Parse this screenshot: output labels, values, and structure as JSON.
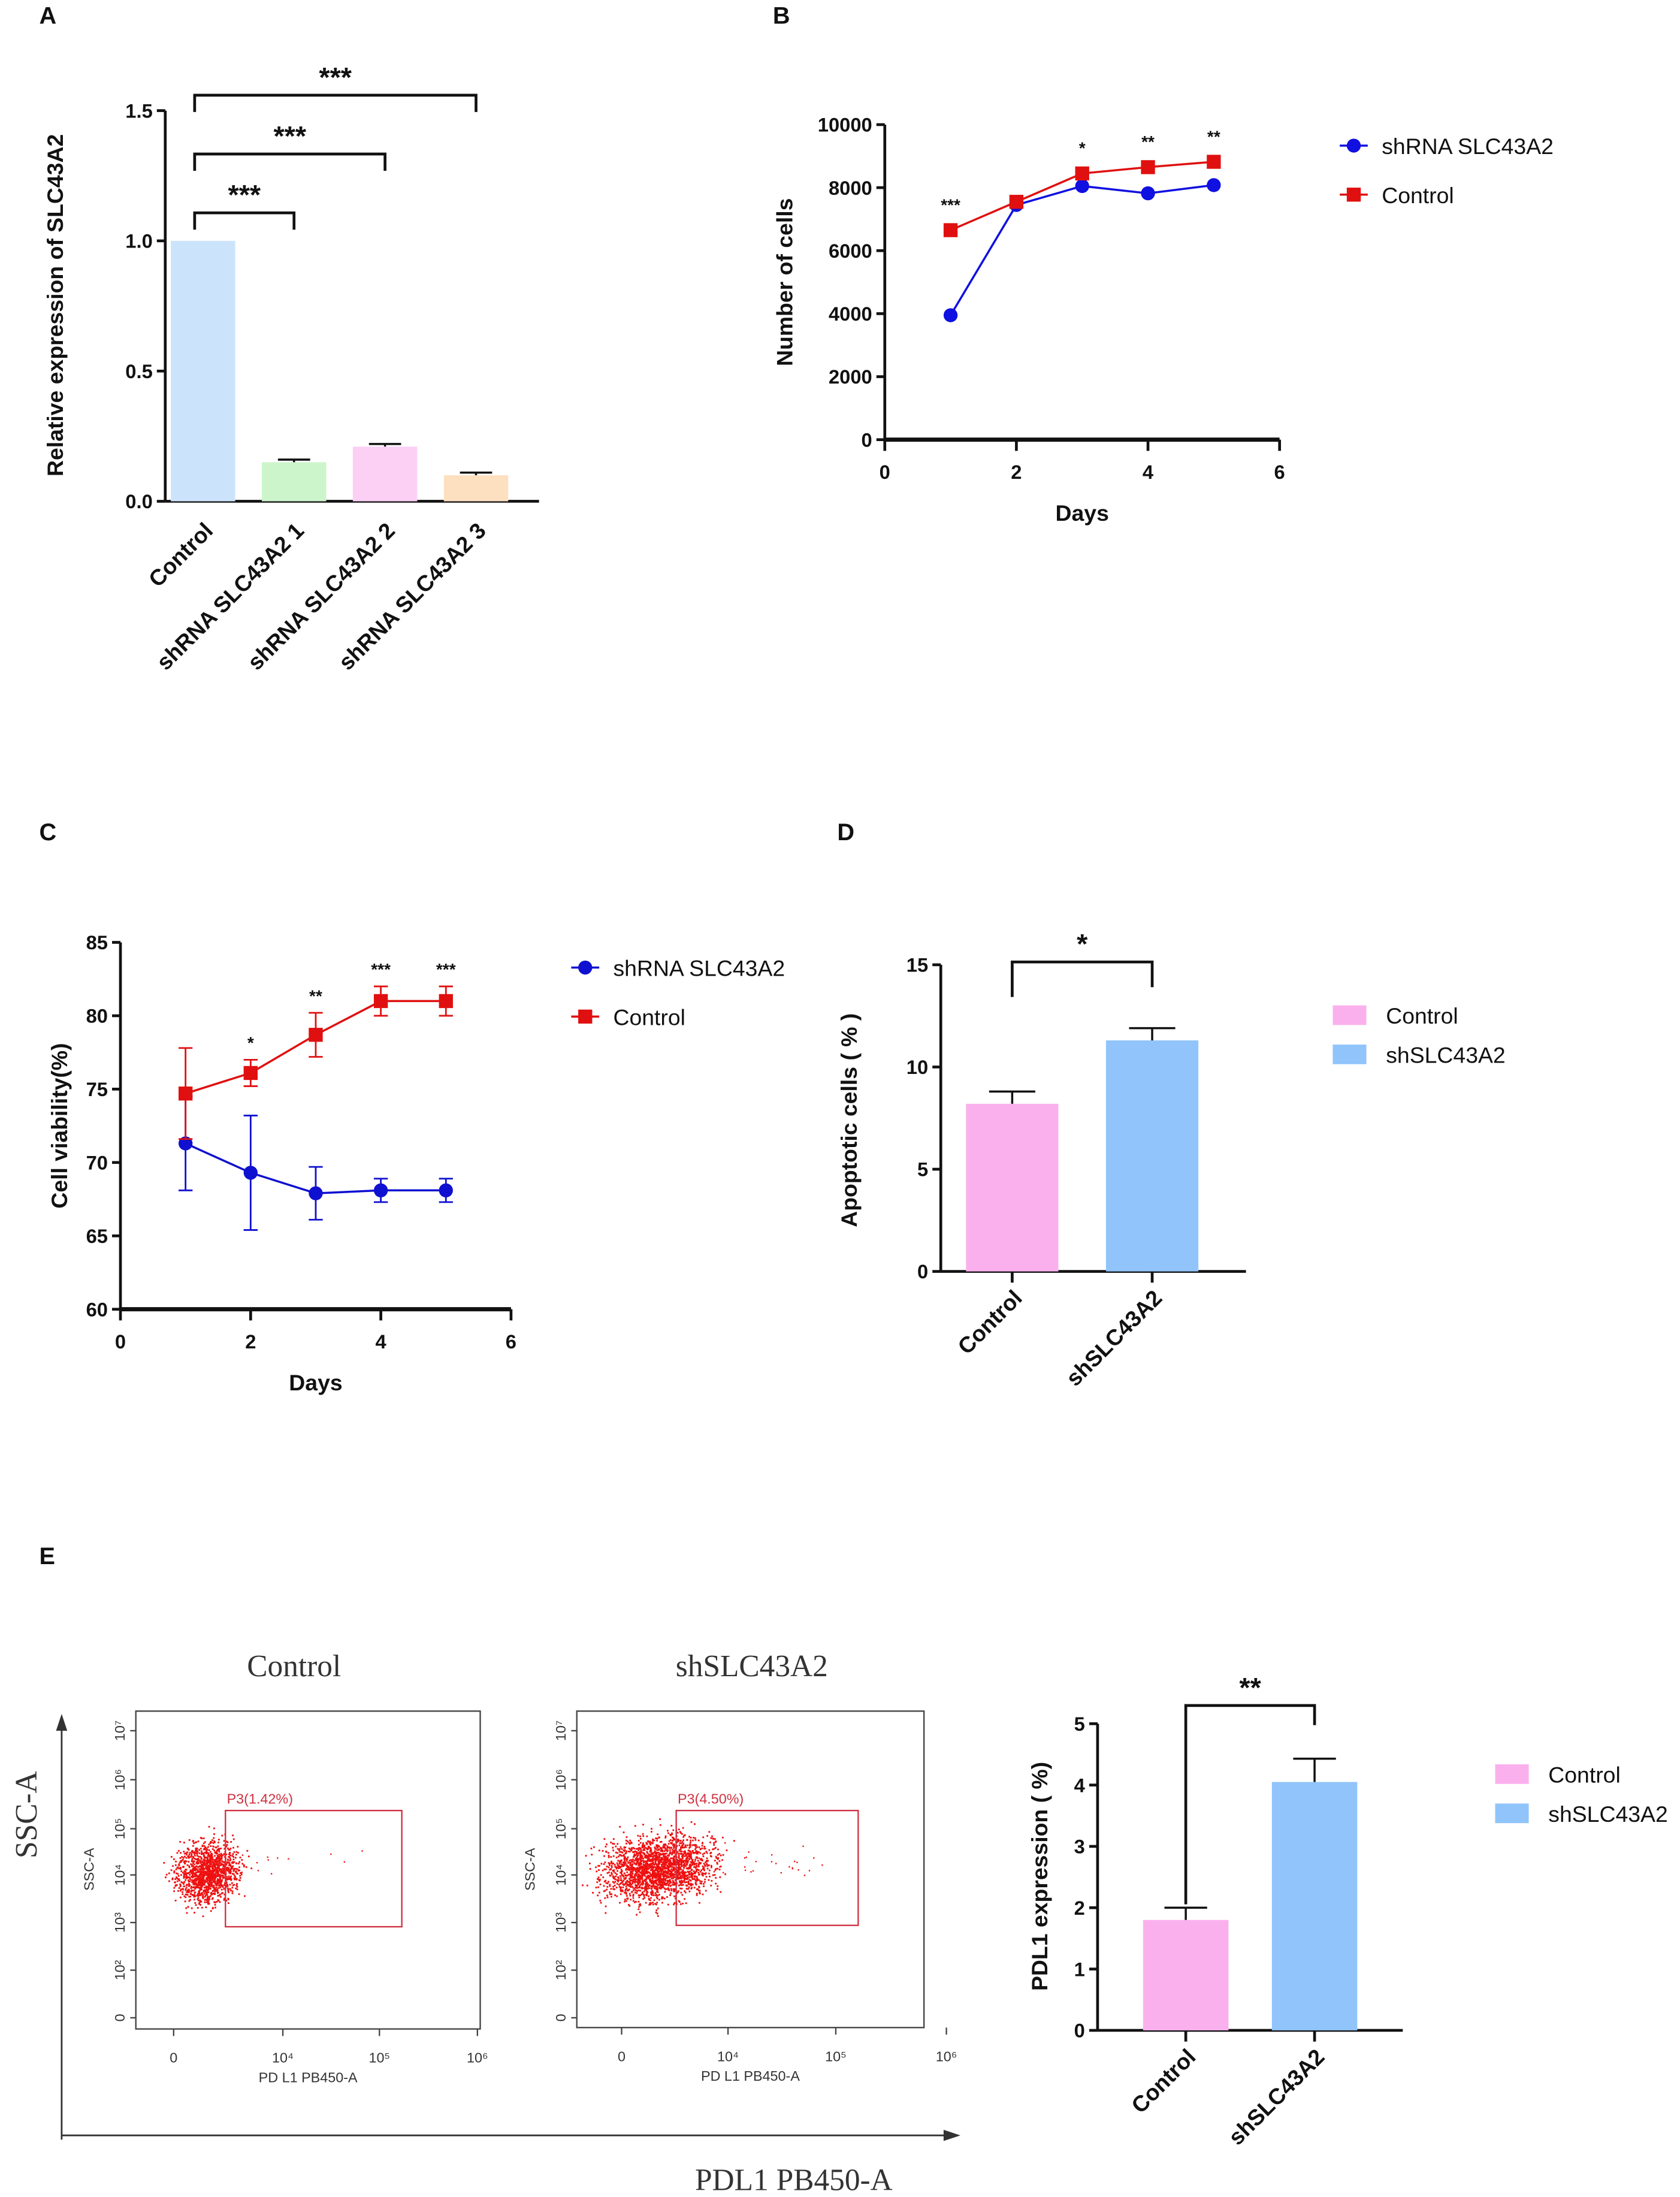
{
  "panels": {
    "a": "A",
    "b": "B",
    "c": "C",
    "d": "D",
    "e": "E"
  },
  "chart_data": [
    {
      "id": "A",
      "type": "bar",
      "title": "",
      "ylabel": "Relative expression of SLC43A2",
      "xlabel": "",
      "ylim": [
        0,
        1.5
      ],
      "yticks": [
        "0.0",
        "0.5",
        "1.0",
        "1.5"
      ],
      "ytick_values": [
        0,
        0.5,
        1.0,
        1.5
      ],
      "categories": [
        "Control",
        "shRNA SLC43A2  1",
        "shRNA SLC43A2 2",
        "shRNA SLC43A2 3"
      ],
      "values": [
        1.0,
        0.15,
        0.21,
        0.1
      ],
      "errors": [
        0,
        0.01,
        0.01,
        0.01
      ],
      "colors": [
        "#cce4fb",
        "#ccf5cc",
        "#fcd0f5",
        "#fde0c0"
      ],
      "significance": [
        {
          "from": "Control",
          "to": "shRNA SLC43A2  1",
          "label": "***"
        },
        {
          "from": "Control",
          "to": "shRNA SLC43A2 2",
          "label": "***"
        },
        {
          "from": "Control",
          "to": "shRNA SLC43A2 3",
          "label": "***"
        }
      ]
    },
    {
      "id": "B",
      "type": "line",
      "xlabel": "Days",
      "ylabel": "Number of cells",
      "xlim": [
        0,
        6
      ],
      "ylim": [
        0,
        10000
      ],
      "xticks": [
        "0",
        "2",
        "4",
        "6"
      ],
      "xtick_values": [
        0,
        2,
        4,
        6
      ],
      "yticks": [
        "0",
        "2000",
        "4000",
        "6000",
        "8000",
        "10000"
      ],
      "ytick_values": [
        0,
        2000,
        4000,
        6000,
        8000,
        10000
      ],
      "x": [
        1,
        2,
        3,
        4,
        5
      ],
      "series": [
        {
          "name": "shRNA SLC43A2",
          "color": "#1010e0",
          "marker": "circle",
          "values": [
            3950,
            7450,
            8050,
            7820,
            8080
          ]
        },
        {
          "name": "Control",
          "color": "#e01010",
          "marker": "square",
          "values": [
            6650,
            7550,
            8450,
            8650,
            8820
          ]
        }
      ],
      "annotations": [
        "***",
        "",
        "*",
        "**",
        "**"
      ],
      "legend": "right"
    },
    {
      "id": "C",
      "type": "line",
      "xlabel": "Days",
      "ylabel": "Cell viability(%)",
      "xlim": [
        0,
        6
      ],
      "ylim": [
        60,
        85
      ],
      "xticks": [
        "0",
        "2",
        "4",
        "6"
      ],
      "xtick_values": [
        0,
        2,
        4,
        6
      ],
      "yticks": [
        "60",
        "65",
        "70",
        "75",
        "80",
        "85"
      ],
      "ytick_values": [
        60,
        65,
        70,
        75,
        80,
        85
      ],
      "x": [
        1,
        2,
        3,
        4,
        5
      ],
      "series": [
        {
          "name": "shRNA SLC43A2",
          "color": "#1010d0",
          "marker": "circle",
          "values": [
            71.3,
            69.3,
            67.9,
            68.1,
            68.1
          ],
          "errors": [
            3.2,
            3.9,
            1.8,
            0.8,
            0.8
          ]
        },
        {
          "name": "Control",
          "color": "#e01010",
          "marker": "square",
          "values": [
            74.7,
            76.1,
            78.7,
            81.0,
            81.0
          ],
          "errors": [
            3.1,
            0.9,
            1.5,
            1.0,
            1.0
          ]
        }
      ],
      "annotations": [
        "",
        "*",
        "**",
        "***",
        "***"
      ],
      "legend": "right"
    },
    {
      "id": "D",
      "type": "bar",
      "ylabel": "Apoptotic cells ( % )",
      "xlabel": "",
      "ylim": [
        0,
        15
      ],
      "yticks": [
        "0",
        "5",
        "10",
        "15"
      ],
      "ytick_values": [
        0,
        5,
        10,
        15
      ],
      "categories": [
        "Control",
        "shSLC43A2"
      ],
      "values": [
        8.2,
        11.3
      ],
      "errors": [
        0.6,
        0.6
      ],
      "colors": [
        "#fbb0ee",
        "#90c4fb"
      ],
      "legend_entries": [
        "Control",
        "shSLC43A2"
      ],
      "significance": [
        {
          "from": "Control",
          "to": "shSLC43A2",
          "label": "*"
        }
      ]
    },
    {
      "id": "E-bar",
      "type": "bar",
      "ylabel": "PDL1 expression ( %)",
      "xlabel": "",
      "ylim": [
        0,
        5
      ],
      "yticks": [
        "0",
        "1",
        "2",
        "3",
        "4",
        "5"
      ],
      "ytick_values": [
        0,
        1,
        2,
        3,
        4,
        5
      ],
      "categories": [
        "Control",
        "shSLC43A2"
      ],
      "values": [
        1.8,
        4.05
      ],
      "errors": [
        0.2,
        0.38
      ],
      "colors": [
        "#fbb0ee",
        "#90c4fb"
      ],
      "legend_entries": [
        "Control",
        "shSLC43A2"
      ],
      "significance": [
        {
          "from": "Control",
          "to": "shSLC43A2",
          "label": "**"
        }
      ]
    },
    {
      "id": "E-flow",
      "type": "scatter",
      "outer_xlabel": "PDL1 PB450-A",
      "outer_ylabel": "SSC-A",
      "plots": [
        {
          "title": "Control",
          "gate_label": "P3(1.42%)",
          "xlabel": "PD L1 PB450-A",
          "ylabel": "SSC-A",
          "gate_percent": 1.42,
          "point_color": "#ee1010"
        },
        {
          "title": "shSLC43A2",
          "gate_label": "P3(4.50%)",
          "xlabel": "PD L1 PB450-A",
          "ylabel": "SSC-A",
          "gate_percent": 4.5,
          "point_color": "#ee1010"
        }
      ],
      "xticks": [
        "0",
        "10⁴",
        "10⁵",
        "10⁶"
      ],
      "yticks": [
        "0",
        "10²",
        "10³",
        "10⁴",
        "10⁵",
        "10⁶",
        "10⁷"
      ]
    }
  ]
}
